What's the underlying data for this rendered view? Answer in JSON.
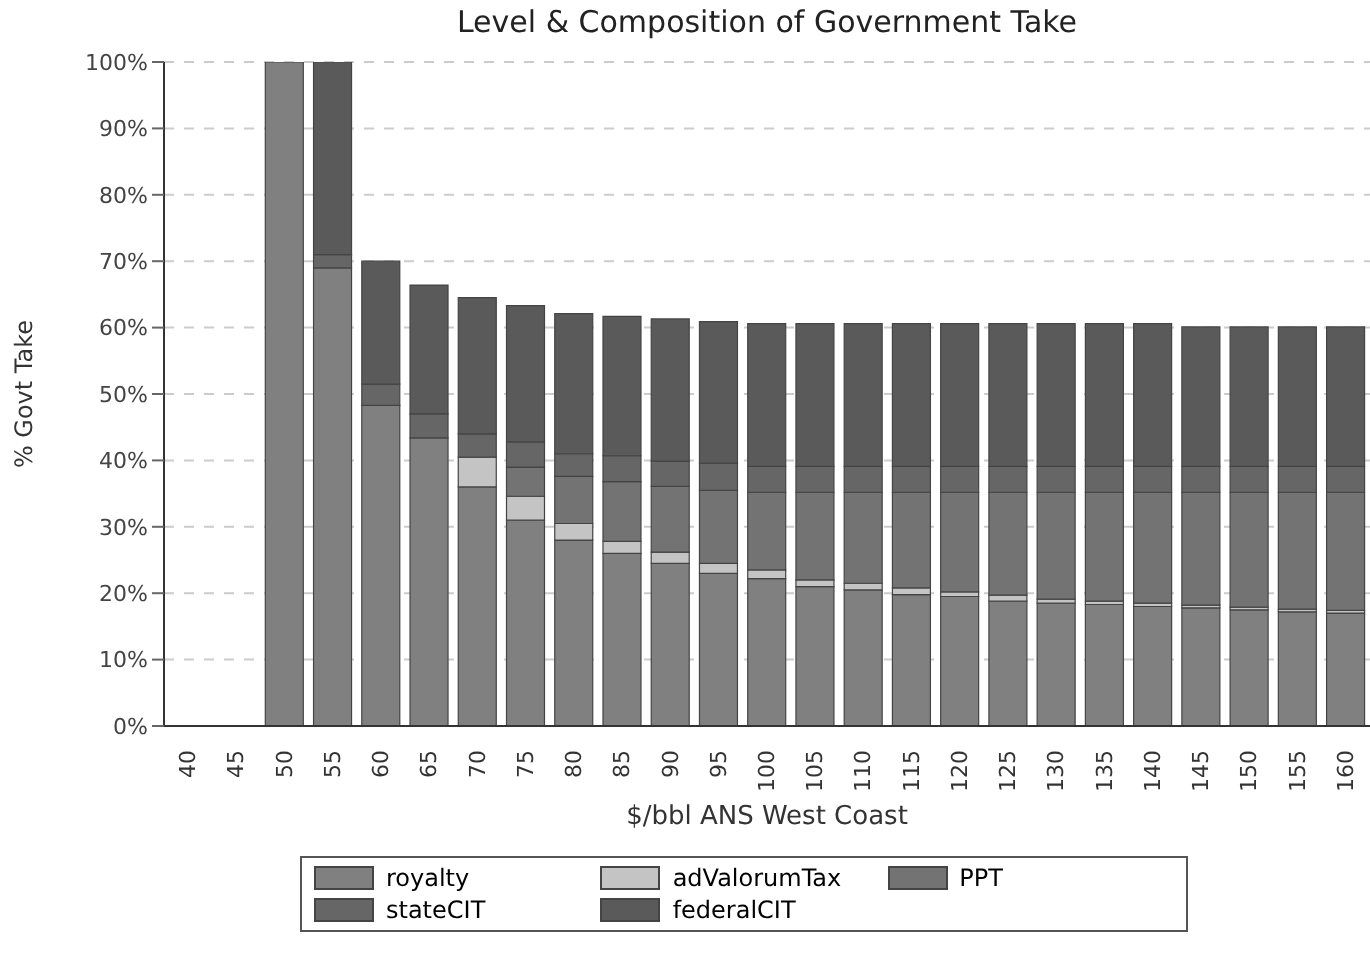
{
  "chart_data": {
    "type": "bar",
    "title": "Level & Composition of Government Take",
    "xlabel": "$/bbl ANS West Coast",
    "ylabel": "% Govt Take",
    "categories": [
      "40",
      "45",
      "50",
      "55",
      "60",
      "65",
      "70",
      "75",
      "80",
      "85",
      "90",
      "95",
      "100",
      "105",
      "110",
      "115",
      "120",
      "125",
      "130",
      "135",
      "140",
      "145",
      "150",
      "155",
      "160"
    ],
    "stacked": true,
    "ylim": [
      0,
      100
    ],
    "yticks": [
      {
        "value": 0,
        "label": "0%"
      },
      {
        "value": 10,
        "label": "10%"
      },
      {
        "value": 20,
        "label": "20%"
      },
      {
        "value": 30,
        "label": "30%"
      },
      {
        "value": 40,
        "label": "40%"
      },
      {
        "value": 50,
        "label": "50%"
      },
      {
        "value": 60,
        "label": "60%"
      },
      {
        "value": 70,
        "label": "70%"
      },
      {
        "value": 80,
        "label": "80%"
      },
      {
        "value": 90,
        "label": "90%"
      },
      {
        "value": 100,
        "label": "100%"
      }
    ],
    "grid": "y",
    "legend": "bottom",
    "series": [
      {
        "name": "royalty",
        "color": "#808080",
        "values": [
          null,
          null,
          100,
          69,
          48.3,
          43.4,
          36,
          31,
          28,
          26,
          24.5,
          23,
          22.2,
          21,
          20.5,
          19.8,
          19.5,
          18.8,
          18.5,
          18.3,
          18,
          17.8,
          17.5,
          17.2,
          17
        ]
      },
      {
        "name": "adValorumTax",
        "color": "#c4c4c4",
        "values": [
          null,
          null,
          0,
          0,
          0,
          0,
          4.5,
          3.6,
          2.5,
          1.8,
          1.7,
          1.5,
          1.3,
          1,
          1,
          1,
          0.7,
          0.9,
          0.6,
          0.5,
          0.5,
          0.4,
          0.4,
          0.4,
          0.4
        ]
      },
      {
        "name": "PPT",
        "color": "#737373",
        "values": [
          null,
          null,
          0,
          0,
          0,
          0,
          0,
          4.4,
          7.1,
          9,
          9.9,
          11,
          11.7,
          13.2,
          13.7,
          14.4,
          15,
          15.5,
          16.1,
          16.4,
          16.7,
          17,
          17.3,
          17.6,
          17.8
        ]
      },
      {
        "name": "stateCIT",
        "color": "#666666",
        "values": [
          null,
          null,
          0,
          2,
          3.2,
          3.6,
          3.5,
          3.8,
          3.4,
          3.9,
          3.8,
          4.1,
          3.9,
          3.9,
          3.9,
          3.9,
          3.9,
          3.9,
          3.9,
          3.9,
          3.9,
          3.9,
          3.9,
          3.9,
          3.9
        ]
      },
      {
        "name": "federalCIT",
        "color": "#5a5a5a",
        "values": [
          null,
          null,
          0,
          29,
          18.5,
          19.4,
          20.5,
          20.5,
          21.1,
          21,
          21.4,
          21.3,
          21.5,
          21.5,
          21.5,
          21.5,
          21.5,
          21.5,
          21.5,
          21.5,
          21.5,
          21,
          21,
          21,
          21
        ]
      }
    ]
  }
}
